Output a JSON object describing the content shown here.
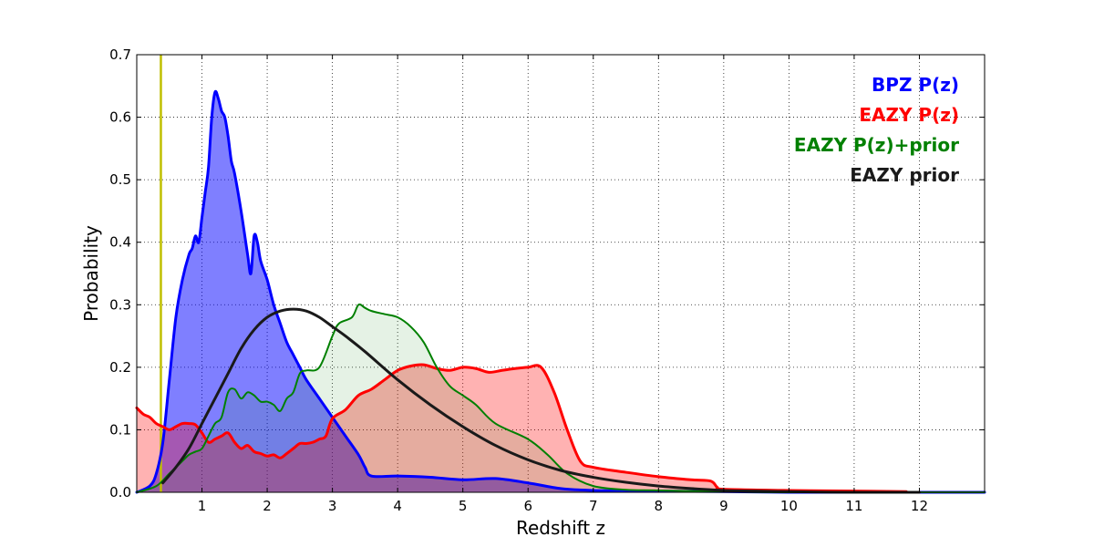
{
  "chart_data": {
    "type": "area",
    "title": "",
    "xlabel": "Redshift z",
    "ylabel": "Probability",
    "xlim": [
      0,
      13
    ],
    "ylim": [
      0,
      0.7
    ],
    "xticks": [
      1,
      2,
      3,
      4,
      5,
      6,
      7,
      8,
      9,
      10,
      11,
      12
    ],
    "yticks": [
      0.0,
      0.1,
      0.2,
      0.3,
      0.4,
      0.5,
      0.6,
      0.7
    ],
    "grid": true,
    "legend_placement": "top-right",
    "vertical_line": {
      "x": 0.37,
      "color": "#bfbf00"
    },
    "series": [
      {
        "name": "BPZ P(z)",
        "color": "#0000ff",
        "fill": "#0000ff",
        "fill_opacity": 0.5,
        "line_width": 3,
        "x": [
          0,
          0.2,
          0.3,
          0.4,
          0.5,
          0.6,
          0.7,
          0.8,
          0.85,
          0.9,
          0.95,
          1.0,
          1.05,
          1.1,
          1.15,
          1.2,
          1.25,
          1.3,
          1.35,
          1.4,
          1.45,
          1.5,
          1.6,
          1.7,
          1.75,
          1.8,
          1.85,
          1.9,
          2.0,
          2.1,
          2.2,
          2.3,
          2.4,
          2.5,
          2.6,
          2.8,
          3.0,
          3.2,
          3.4,
          3.5,
          3.6,
          4.0,
          4.5,
          5.0,
          5.5,
          6.0,
          6.5,
          7.0,
          8.0,
          9.0,
          10.0,
          11.0,
          12.0,
          13.0
        ],
        "y": [
          0.0,
          0.01,
          0.03,
          0.08,
          0.18,
          0.28,
          0.34,
          0.38,
          0.39,
          0.41,
          0.4,
          0.44,
          0.48,
          0.52,
          0.6,
          0.64,
          0.63,
          0.61,
          0.6,
          0.57,
          0.53,
          0.51,
          0.45,
          0.38,
          0.35,
          0.41,
          0.4,
          0.37,
          0.34,
          0.3,
          0.27,
          0.24,
          0.22,
          0.2,
          0.18,
          0.15,
          0.12,
          0.09,
          0.06,
          0.04,
          0.026,
          0.026,
          0.024,
          0.02,
          0.022,
          0.015,
          0.006,
          0.003,
          0.002,
          0.001,
          0.0,
          0.0,
          0.0,
          0.0
        ]
      },
      {
        "name": "EAZY P(z)",
        "color": "#ff0000",
        "fill": "#ff0000",
        "fill_opacity": 0.3,
        "line_width": 3,
        "x": [
          0,
          0.1,
          0.2,
          0.3,
          0.4,
          0.5,
          0.6,
          0.7,
          0.8,
          0.9,
          1.0,
          1.1,
          1.2,
          1.3,
          1.4,
          1.5,
          1.6,
          1.7,
          1.8,
          1.9,
          2.0,
          2.1,
          2.2,
          2.3,
          2.4,
          2.5,
          2.6,
          2.7,
          2.8,
          2.9,
          3.0,
          3.2,
          3.4,
          3.6,
          3.8,
          4.0,
          4.2,
          4.4,
          4.6,
          4.8,
          5.0,
          5.2,
          5.4,
          5.6,
          5.8,
          6.0,
          6.2,
          6.4,
          6.6,
          6.8,
          7.0,
          7.5,
          8.0,
          8.5,
          8.8,
          8.9,
          9.0,
          10.0,
          11.0,
          11.8
        ],
        "y": [
          0.135,
          0.125,
          0.12,
          0.11,
          0.105,
          0.1,
          0.105,
          0.11,
          0.11,
          0.108,
          0.095,
          0.08,
          0.085,
          0.09,
          0.095,
          0.08,
          0.07,
          0.075,
          0.065,
          0.062,
          0.058,
          0.06,
          0.055,
          0.062,
          0.07,
          0.078,
          0.078,
          0.08,
          0.085,
          0.09,
          0.118,
          0.132,
          0.155,
          0.165,
          0.18,
          0.195,
          0.202,
          0.204,
          0.198,
          0.195,
          0.2,
          0.198,
          0.192,
          0.195,
          0.198,
          0.2,
          0.2,
          0.16,
          0.1,
          0.05,
          0.04,
          0.032,
          0.025,
          0.02,
          0.018,
          0.008,
          0.005,
          0.003,
          0.002,
          0.001
        ]
      },
      {
        "name": "EAZY P(z)+prior",
        "color": "#008000",
        "fill": "#008000",
        "fill_opacity": 0.1,
        "line_width": 2,
        "x": [
          0,
          0.3,
          0.5,
          0.7,
          0.8,
          0.9,
          1.0,
          1.1,
          1.2,
          1.3,
          1.4,
          1.5,
          1.6,
          1.7,
          1.8,
          1.9,
          2.0,
          2.1,
          2.2,
          2.3,
          2.4,
          2.5,
          2.6,
          2.8,
          3.0,
          3.1,
          3.3,
          3.4,
          3.5,
          3.6,
          3.8,
          4.0,
          4.2,
          4.4,
          4.6,
          4.8,
          5.0,
          5.2,
          5.5,
          6.0,
          6.3,
          6.6,
          7.0,
          7.5,
          8.0,
          9.0,
          10.0,
          11.0,
          13.0
        ],
        "y": [
          0.0,
          0.01,
          0.03,
          0.05,
          0.06,
          0.065,
          0.07,
          0.09,
          0.11,
          0.12,
          0.16,
          0.165,
          0.15,
          0.16,
          0.155,
          0.145,
          0.145,
          0.14,
          0.13,
          0.15,
          0.16,
          0.19,
          0.195,
          0.2,
          0.25,
          0.27,
          0.28,
          0.3,
          0.295,
          0.29,
          0.285,
          0.28,
          0.265,
          0.24,
          0.2,
          0.17,
          0.155,
          0.14,
          0.11,
          0.085,
          0.06,
          0.03,
          0.01,
          0.004,
          0.003,
          0.001,
          0.0,
          0.0,
          0.0
        ]
      },
      {
        "name": "EAZY prior",
        "color": "#1a1a1a",
        "fill": "none",
        "fill_opacity": 0,
        "line_width": 3,
        "x": [
          0.4,
          0.6,
          0.8,
          1.0,
          1.2,
          1.4,
          1.6,
          1.8,
          2.0,
          2.2,
          2.4,
          2.6,
          2.8,
          3.0,
          3.2,
          3.5,
          4.0,
          4.5,
          5.0,
          5.5,
          6.0,
          6.5,
          7.0,
          7.5,
          8.0,
          8.5,
          9.0,
          9.5,
          10.0,
          11.0,
          12.0
        ],
        "y": [
          0.015,
          0.04,
          0.07,
          0.11,
          0.15,
          0.19,
          0.23,
          0.26,
          0.28,
          0.29,
          0.293,
          0.29,
          0.28,
          0.265,
          0.25,
          0.225,
          0.18,
          0.14,
          0.105,
          0.075,
          0.052,
          0.035,
          0.024,
          0.016,
          0.01,
          0.006,
          0.003,
          0.002,
          0.001,
          0.0,
          0.0
        ]
      }
    ]
  }
}
